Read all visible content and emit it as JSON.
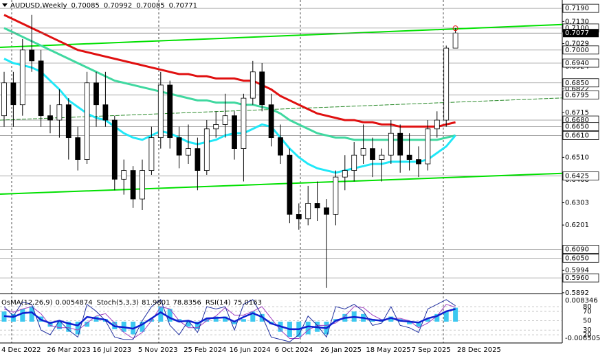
{
  "chart_data": {
    "type": "candlestick",
    "symbol": "AUDUSD,Weekly",
    "ylim": [
      0.5929,
      0.7228
    ],
    "yticks": [
      {
        "value": 0.713,
        "label": "0.7130"
      },
      0.7029,
      0.6924,
      0.6822,
      0.6715,
      {
        "value": 0.651,
        "label": "0.6510"
      },
      0.6408,
      0.6303,
      0.6201,
      0.5994,
      0.5892
    ],
    "levels": [
      {
        "value": 0.719,
        "label": "0.7190"
      },
      {
        "value": 0.71,
        "label": "0.7100"
      },
      {
        "value": 0.7,
        "label": "0.7000"
      },
      {
        "value": 0.694,
        "label": "0.6940"
      },
      {
        "value": 0.685,
        "label": "0.6850"
      },
      {
        "value": 0.6795,
        "label": "0.6795"
      },
      {
        "value": 0.668,
        "label": "0.6680"
      },
      {
        "value": 0.665,
        "label": "0.6650"
      },
      {
        "value": 0.661,
        "label": "0.6610"
      },
      {
        "value": 0.6425,
        "label": "0.6425"
      },
      {
        "value": 0.609,
        "label": "0.6090"
      },
      {
        "value": 0.605,
        "label": "0.6050"
      },
      {
        "value": 0.596,
        "label": "0.5960"
      }
    ],
    "last_price": {
      "value": 0.7077,
      "label": "0.7077"
    },
    "xticks": [
      "4 Dec 2022",
      "26 Mar 2023",
      "16 Jul 2023",
      "5 Nov 2023",
      "25 Feb 2024",
      "16 Jun 2024",
      "6 Oct 2024",
      "26 Jan 2025",
      "18 May 2025",
      "7 Sep 2025",
      "28 Dec 2025"
    ],
    "candles": [
      [
        0.67,
        0.69,
        0.665,
        0.685
      ],
      [
        0.685,
        0.69,
        0.665,
        0.675
      ],
      [
        0.675,
        0.705,
        0.67,
        0.7
      ],
      [
        0.7,
        0.716,
        0.69,
        0.695
      ],
      [
        0.695,
        0.7,
        0.665,
        0.67
      ],
      [
        0.67,
        0.675,
        0.662,
        0.668
      ],
      [
        0.668,
        0.682,
        0.66,
        0.675
      ],
      [
        0.675,
        0.678,
        0.65,
        0.66
      ],
      [
        0.66,
        0.665,
        0.645,
        0.65
      ],
      [
        0.65,
        0.69,
        0.648,
        0.685
      ],
      [
        0.685,
        0.69,
        0.665,
        0.675
      ],
      [
        0.675,
        0.69,
        0.665,
        0.668
      ],
      [
        0.668,
        0.67,
        0.636,
        0.641
      ],
      [
        0.641,
        0.65,
        0.634,
        0.645
      ],
      [
        0.645,
        0.647,
        0.628,
        0.632
      ],
      [
        0.632,
        0.65,
        0.627,
        0.645
      ],
      [
        0.645,
        0.665,
        0.643,
        0.66
      ],
      [
        0.66,
        0.69,
        0.655,
        0.684
      ],
      [
        0.684,
        0.686,
        0.655,
        0.66
      ],
      [
        0.66,
        0.665,
        0.646,
        0.652
      ],
      [
        0.652,
        0.666,
        0.648,
        0.655
      ],
      [
        0.655,
        0.66,
        0.636,
        0.645
      ],
      [
        0.645,
        0.668,
        0.643,
        0.664
      ],
      [
        0.664,
        0.672,
        0.66,
        0.666
      ],
      [
        0.666,
        0.68,
        0.66,
        0.67
      ],
      [
        0.67,
        0.672,
        0.65,
        0.655
      ],
      [
        0.655,
        0.68,
        0.64,
        0.678
      ],
      [
        0.678,
        0.695,
        0.675,
        0.69
      ],
      [
        0.69,
        0.694,
        0.672,
        0.675
      ],
      [
        0.675,
        0.68,
        0.656,
        0.66
      ],
      [
        0.66,
        0.666,
        0.648,
        0.652
      ],
      [
        0.652,
        0.655,
        0.621,
        0.625
      ],
      [
        0.625,
        0.63,
        0.618,
        0.623
      ],
      [
        0.623,
        0.638,
        0.62,
        0.63
      ],
      [
        0.63,
        0.64,
        0.622,
        0.628
      ],
      [
        0.628,
        0.632,
        0.5914,
        0.625
      ],
      [
        0.625,
        0.645,
        0.62,
        0.642
      ],
      [
        0.642,
        0.652,
        0.636,
        0.645
      ],
      [
        0.645,
        0.658,
        0.64,
        0.652
      ],
      [
        0.652,
        0.666,
        0.648,
        0.655
      ],
      [
        0.655,
        0.66,
        0.642,
        0.65
      ],
      [
        0.65,
        0.655,
        0.64,
        0.652
      ],
      [
        0.652,
        0.668,
        0.648,
        0.662
      ],
      [
        0.662,
        0.666,
        0.644,
        0.652
      ],
      [
        0.652,
        0.662,
        0.645,
        0.65
      ],
      [
        0.65,
        0.656,
        0.642,
        0.648
      ],
      [
        0.648,
        0.668,
        0.645,
        0.664
      ],
      [
        0.664,
        0.672,
        0.66,
        0.668
      ],
      [
        0.668,
        0.702,
        0.665,
        0.70085
      ],
      [
        0.70085,
        0.70992,
        0.70085,
        0.70771
      ]
    ],
    "moving_averages": [
      {
        "color": "#e01010",
        "values": [
          0.716,
          0.714,
          0.712,
          0.71,
          0.708,
          0.706,
          0.704,
          0.702,
          0.7,
          0.699,
          0.698,
          0.697,
          0.696,
          0.695,
          0.694,
          0.693,
          0.692,
          0.691,
          0.69,
          0.689,
          0.689,
          0.688,
          0.688,
          0.687,
          0.687,
          0.687,
          0.686,
          0.686,
          0.684,
          0.682,
          0.679,
          0.677,
          0.675,
          0.673,
          0.671,
          0.67,
          0.669,
          0.668,
          0.668,
          0.667,
          0.667,
          0.666,
          0.666,
          0.665,
          0.665,
          0.665,
          0.665,
          0.665,
          0.666,
          0.667
        ]
      },
      {
        "color": "#40d8a0",
        "values": [
          0.71,
          0.708,
          0.706,
          0.704,
          0.702,
          0.7,
          0.698,
          0.696,
          0.694,
          0.692,
          0.69,
          0.688,
          0.686,
          0.685,
          0.684,
          0.683,
          0.682,
          0.681,
          0.68,
          0.679,
          0.678,
          0.677,
          0.677,
          0.676,
          0.676,
          0.676,
          0.675,
          0.675,
          0.674,
          0.673,
          0.671,
          0.668,
          0.666,
          0.664,
          0.662,
          0.661,
          0.66,
          0.66,
          0.659,
          0.659,
          0.659,
          0.659,
          0.659,
          0.659,
          0.659,
          0.659,
          0.659,
          0.659,
          0.66,
          0.661
        ]
      },
      {
        "color": "#20e8f8",
        "values": [
          0.696,
          0.694,
          0.693,
          0.692,
          0.69,
          0.686,
          0.682,
          0.677,
          0.674,
          0.671,
          0.669,
          0.668,
          0.665,
          0.662,
          0.66,
          0.659,
          0.661,
          0.663,
          0.662,
          0.66,
          0.658,
          0.657,
          0.658,
          0.659,
          0.661,
          0.662,
          0.662,
          0.664,
          0.666,
          0.665,
          0.66,
          0.655,
          0.651,
          0.648,
          0.646,
          0.645,
          0.644,
          0.645,
          0.646,
          0.647,
          0.648,
          0.648,
          0.649,
          0.649,
          0.649,
          0.649,
          0.65,
          0.653,
          0.656,
          0.661
        ]
      }
    ],
    "trendlines": [
      {
        "color": "#00e000",
        "values": [
          0.7012,
          0.7116
        ]
      },
      {
        "color": "#00e000",
        "values": [
          0.6342,
          0.6437
        ]
      },
      {
        "color": "#2a8a2a",
        "values": [
          0.668,
          0.6781
        ]
      }
    ],
    "indicator": {
      "osma_name": "OsMA(12,26,9)",
      "stoch_name": "Stoch(5,3,3)",
      "rsi_name": "RSI(14)",
      "osma_lim": [
        -0.006505,
        0.008346
      ],
      "osma_ticks": [
        0.008346,
        -0.006505
      ],
      "pct_lim": [
        0,
        100
      ],
      "pct_levels": [
        80,
        70,
        50,
        30,
        20
      ],
      "osma": [
        0.004,
        0.003,
        0.005,
        0.006,
        0.002,
        -0.002,
        -0.003,
        -0.004,
        -0.005,
        -0.002,
        0.002,
        0.001,
        -0.003,
        -0.004,
        -0.005,
        -0.004,
        0.001,
        0.006,
        0.005,
        0.001,
        -0.002,
        -0.003,
        0.001,
        0.002,
        0.002,
        -0.001,
        0.001,
        0.004,
        0.003,
        -0.001,
        -0.004,
        -0.006,
        -0.006,
        -0.005,
        -0.004,
        -0.005,
        0.001,
        0.003,
        0.004,
        0.003,
        0.001,
        0.001,
        0.002,
        0.001,
        -0.001,
        -0.002,
        0.001,
        0.003,
        0.004,
        0.0054874
      ],
      "stoch": [
        80,
        60,
        90,
        85,
        30,
        20,
        50,
        30,
        15,
        85,
        70,
        50,
        15,
        10,
        10,
        50,
        80,
        95,
        40,
        20,
        50,
        25,
        80,
        75,
        80,
        30,
        85,
        95,
        60,
        15,
        10,
        5,
        20,
        60,
        40,
        15,
        80,
        75,
        85,
        70,
        40,
        45,
        80,
        40,
        35,
        25,
        75,
        85,
        95,
        81.9801
      ],
      "stoch_signal": [
        75,
        68,
        75,
        80,
        65,
        40,
        35,
        35,
        30,
        45,
        60,
        65,
        45,
        25,
        12,
        25,
        50,
        80,
        75,
        50,
        35,
        35,
        50,
        60,
        78,
        62,
        62,
        70,
        80,
        55,
        30,
        12,
        12,
        30,
        40,
        40,
        45,
        60,
        80,
        78,
        62,
        52,
        55,
        55,
        50,
        35,
        45,
        60,
        85,
        78.8356
      ],
      "rsi": [
        60,
        58,
        66,
        68,
        52,
        45,
        50,
        44,
        40,
        58,
        55,
        52,
        38,
        36,
        33,
        42,
        55,
        68,
        56,
        48,
        50,
        44,
        55,
        56,
        57,
        48,
        58,
        66,
        58,
        44,
        38,
        32,
        32,
        38,
        36,
        34,
        50,
        56,
        58,
        56,
        52,
        50,
        56,
        50,
        48,
        46,
        55,
        60,
        70,
        75.0163
      ]
    }
  }
}
